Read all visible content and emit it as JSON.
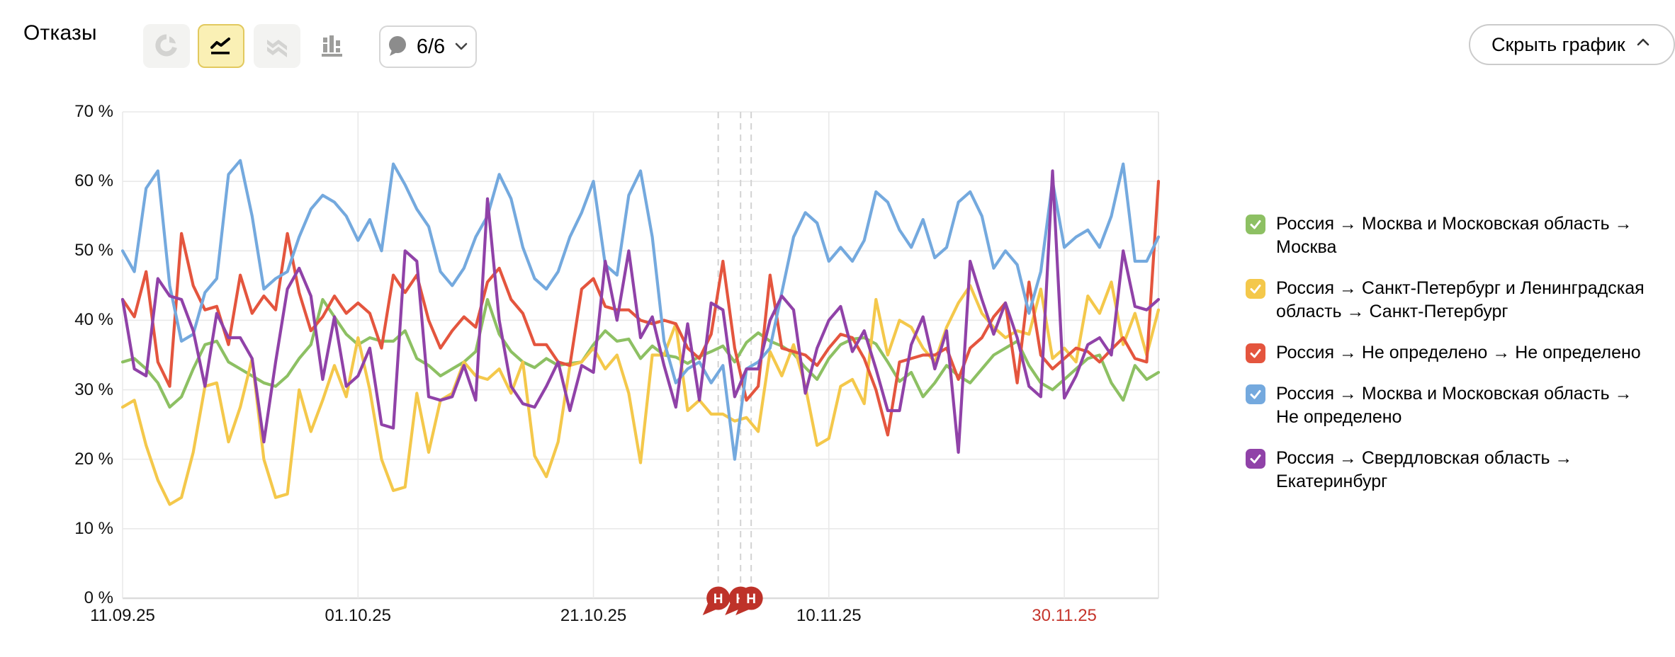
{
  "header": {
    "title": "Отказы",
    "chart_type_buttons": [
      {
        "id": "pie",
        "icon": "pie-chart-icon",
        "selected": false
      },
      {
        "id": "line",
        "icon": "line-chart-icon",
        "selected": true
      },
      {
        "id": "stacked",
        "icon": "stacked-area-icon",
        "selected": false
      },
      {
        "id": "columns",
        "icon": "bar-columns-icon",
        "selected": false
      }
    ],
    "annotations_dropdown": {
      "icon": "speech-bubble-icon",
      "label": "6/6"
    },
    "hide_chart_label": "Скрыть график"
  },
  "chart_data": {
    "type": "line",
    "title": "Отказы",
    "unit": "%",
    "ylim": [
      0,
      70
    ],
    "y_ticks": [
      {
        "value": 70,
        "label": "70 %"
      },
      {
        "value": 60,
        "label": "60 %"
      },
      {
        "value": 50,
        "label": "50 %"
      },
      {
        "value": 40,
        "label": "40 %"
      },
      {
        "value": 30,
        "label": "30 %"
      },
      {
        "value": 20,
        "label": "20 %"
      },
      {
        "value": 10,
        "label": "10 %"
      },
      {
        "value": 0,
        "label": "0 %"
      }
    ],
    "x_ticks": [
      {
        "day": 0,
        "label": "11.09.25",
        "color": "#111111"
      },
      {
        "day": 20,
        "label": "01.10.25",
        "color": "#111111"
      },
      {
        "day": 40,
        "label": "21.10.25",
        "color": "#111111"
      },
      {
        "day": 60,
        "label": "10.11.25",
        "color": "#111111"
      },
      {
        "day": 80,
        "label": "30.11.25",
        "color": "#c5352c"
      }
    ],
    "days_total": 89,
    "grid": true,
    "legend_position": "right",
    "annotations": [
      {
        "day": 50.6,
        "label": "Н"
      },
      {
        "day": 52.5,
        "label": "Н"
      },
      {
        "day": 53.4,
        "label": "Н"
      }
    ],
    "series": [
      {
        "name": "Россия → Москва и Московская область → Москва",
        "color": "#8dc063",
        "values": [
          34,
          34.5,
          33,
          31,
          27.5,
          29,
          33,
          36.5,
          37,
          34,
          33,
          32,
          31,
          30.5,
          32,
          34.5,
          36.5,
          43,
          40.5,
          38,
          36.5,
          37.5,
          37,
          37,
          38.5,
          34.5,
          33.5,
          32,
          33,
          34,
          35.5,
          43,
          38,
          35.5,
          34,
          33.2,
          34.5,
          33.5,
          33.8,
          34,
          36.5,
          38.5,
          37,
          37.3,
          34.5,
          36.3,
          35,
          34.7,
          33.8,
          34.8,
          35.5,
          36.3,
          34,
          36.8,
          38.2,
          37,
          36.3,
          35.2,
          33.2,
          31.5,
          34.5,
          36.5,
          37.3,
          37.5,
          36.6,
          34,
          31.2,
          32.5,
          29,
          31,
          33.5,
          32,
          31,
          33,
          35,
          36,
          37,
          33.5,
          31,
          30,
          31.5,
          33,
          34.5,
          35,
          31,
          28.5,
          33.5,
          31.5,
          32.5
        ]
      },
      {
        "name": "Россия → Санкт-Петербург и Ленинградская область → Санкт-Петербург",
        "color": "#f4c84b",
        "values": [
          27.5,
          28.5,
          22,
          17,
          13.5,
          14.5,
          21,
          30.5,
          31,
          22.5,
          27.5,
          34.5,
          20,
          14.5,
          15,
          30,
          24,
          28.5,
          33.5,
          29,
          37.5,
          30,
          20,
          15.5,
          16,
          29.5,
          21,
          28.5,
          29.5,
          34,
          32,
          31.5,
          33,
          29.5,
          34,
          20.5,
          17.5,
          22.5,
          33.5,
          34,
          36,
          33,
          35,
          29.5,
          19.5,
          35,
          35,
          39.5,
          27,
          28.5,
          26.5,
          26.5,
          25.5,
          26,
          24,
          35.5,
          32,
          36.5,
          30.5,
          22,
          23,
          30.5,
          31.5,
          28,
          43,
          35,
          40,
          39,
          36,
          34,
          39,
          42.5,
          45,
          41,
          39,
          37.5,
          38.5,
          38,
          44.5,
          34.5,
          36,
          34,
          43.5,
          41,
          45.5,
          36.5,
          41,
          35,
          41.5
        ]
      },
      {
        "name": "Россия → Не определено → Не определено",
        "color": "#e4553e",
        "values": [
          43,
          40.5,
          47,
          34,
          30.5,
          52.5,
          45,
          41.5,
          42,
          36.5,
          46.5,
          41,
          43.5,
          41.5,
          52.5,
          44,
          38.5,
          40.5,
          43.5,
          41,
          42.5,
          41,
          36,
          46.5,
          44,
          46.5,
          40,
          36,
          38.5,
          40.5,
          39,
          45.5,
          47.5,
          43,
          41,
          36.5,
          36.5,
          34,
          33.5,
          44.5,
          46,
          42,
          41.5,
          41.5,
          40,
          39.5,
          40,
          39.5,
          36,
          34.5,
          38,
          48.5,
          36,
          28.5,
          30.5,
          46.5,
          36,
          35.5,
          35,
          33.5,
          36,
          38,
          37.5,
          34.5,
          30,
          23.5,
          34,
          34.5,
          35,
          35,
          36,
          31.5,
          36,
          37.5,
          40.5,
          42.5,
          31,
          45.5,
          35,
          33,
          34.5,
          36,
          35.5,
          34,
          35.8,
          37.5,
          34.5,
          34,
          60
        ]
      },
      {
        "name": "Россия → Москва и Московская область → Не определено",
        "color": "#74a9de",
        "values": [
          50,
          47,
          59,
          61.5,
          45,
          37,
          38,
          44,
          46,
          61,
          63,
          55,
          44.5,
          46,
          47,
          52,
          56,
          58,
          57,
          55,
          51.5,
          54.5,
          50,
          62.5,
          59.5,
          56,
          53.5,
          47,
          45,
          47.5,
          52,
          55,
          61,
          57.5,
          50.5,
          46,
          44.5,
          47,
          52,
          55.5,
          60,
          48,
          46.5,
          58,
          61.5,
          52,
          37,
          31,
          33,
          34,
          31,
          33.5,
          20,
          33,
          34,
          36,
          44,
          52,
          55.5,
          54,
          48.5,
          50.5,
          48.5,
          51.5,
          58.5,
          57,
          53,
          50.5,
          54.5,
          49,
          50.5,
          57,
          58.5,
          55,
          47.5,
          50,
          48,
          41,
          47,
          60,
          50.5,
          52,
          53,
          50.5,
          55,
          62.5,
          48.5,
          48.5,
          52
        ]
      },
      {
        "name": "Россия → Свердловская область → Екатеринбург",
        "color": "#9042a8",
        "values": [
          43,
          33,
          32,
          46,
          43.5,
          43,
          38.5,
          30.5,
          41,
          37.5,
          37.5,
          34.5,
          22.5,
          34,
          44.5,
          47.5,
          43.5,
          31.5,
          40.5,
          30.5,
          32,
          36,
          25,
          24.5,
          50,
          48.5,
          29,
          28.5,
          29,
          33.5,
          28.5,
          57.5,
          40,
          30.5,
          28,
          27.5,
          30.5,
          34,
          27,
          33.5,
          32.5,
          48.5,
          40,
          50,
          37.5,
          40.5,
          33.5,
          27.5,
          39.5,
          28.5,
          42.5,
          41.5,
          29,
          33,
          33,
          40,
          43.5,
          41.5,
          29.5,
          36,
          40,
          42,
          35.5,
          38.5,
          33,
          27,
          27,
          36.5,
          40.5,
          33,
          38.5,
          21,
          48.5,
          43,
          38,
          42.5,
          37.5,
          30.5,
          29,
          61.5,
          28.8,
          32,
          36.5,
          37.5,
          35,
          50,
          42,
          41.5,
          43
        ]
      }
    ],
    "colors": {
      "grid": "#e9e9e9",
      "zero_line": "#dcdcdc",
      "plot_border": "#e2e2e2",
      "annotation_dash": "#d2d2d2",
      "annotation_bubble": "#be3229",
      "axis_text": "#111111",
      "last_tick_red": "#c5352c"
    }
  },
  "legend": {
    "items": [
      {
        "label": "Россия → Москва и Московская область → Москва",
        "color": "#8dc063",
        "checked": true
      },
      {
        "label": "Россия → Санкт-Петербург и Ленинградская область → Санкт-Петербург",
        "color": "#f4c84b",
        "checked": true
      },
      {
        "label": "Россия → Не определено → Не определено",
        "color": "#e4553e",
        "checked": true
      },
      {
        "label": "Россия → Москва и Московская область → Не определено",
        "color": "#74a9de",
        "checked": true
      },
      {
        "label": "Россия → Свердловская область → Екатеринбург",
        "color": "#9042a8",
        "checked": true
      }
    ]
  }
}
